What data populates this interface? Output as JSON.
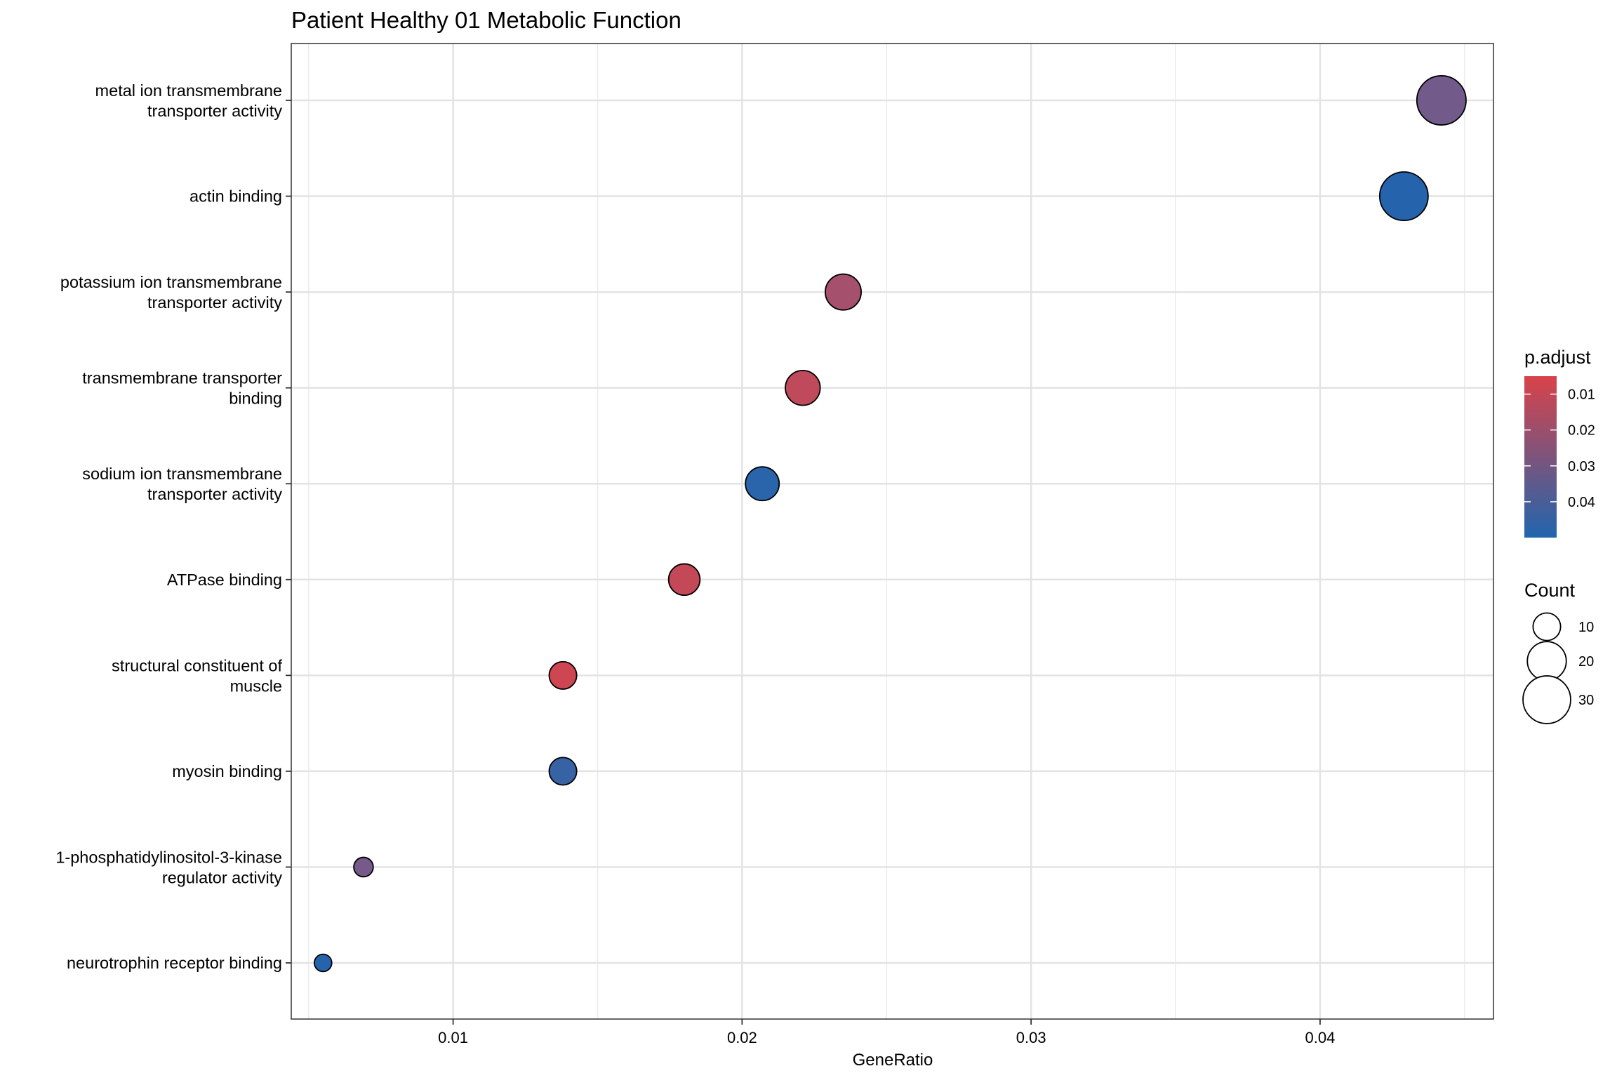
{
  "chart_data": {
    "type": "scatter",
    "title": "Patient Healthy 01 Metabolic Function",
    "xlabel": "GeneRatio",
    "ylabel": "",
    "xlim": [
      0.0044,
      0.046
    ],
    "x_ticks": [
      0.01,
      0.02,
      0.03,
      0.04
    ],
    "x_tick_labels": [
      "0.01",
      "0.02",
      "0.03",
      "0.04"
    ],
    "grid": true,
    "legend_position": "right",
    "categories": [
      [
        "metal ion transmembrane",
        "transporter activity"
      ],
      [
        "actin binding"
      ],
      [
        "potassium ion transmembrane",
        "transporter activity"
      ],
      [
        "transmembrane transporter",
        "binding"
      ],
      [
        "sodium ion transmembrane",
        "transporter activity"
      ],
      [
        "ATPase binding"
      ],
      [
        "structural constituent of",
        "muscle"
      ],
      [
        "myosin binding"
      ],
      [
        "1-phosphatidylinositol-3-kinase",
        "regulator activity"
      ],
      [
        "neurotrophin receptor binding"
      ]
    ],
    "points": [
      {
        "x": 0.0442,
        "count": 32,
        "p_adjust": 0.032
      },
      {
        "x": 0.0429,
        "count": 31,
        "p_adjust": 0.049
      },
      {
        "x": 0.0235,
        "count": 17,
        "p_adjust": 0.019
      },
      {
        "x": 0.0221,
        "count": 16,
        "p_adjust": 0.012
      },
      {
        "x": 0.0207,
        "count": 15,
        "p_adjust": 0.048
      },
      {
        "x": 0.018,
        "count": 13,
        "p_adjust": 0.011
      },
      {
        "x": 0.0138,
        "count": 10,
        "p_adjust": 0.008
      },
      {
        "x": 0.0138,
        "count": 10,
        "p_adjust": 0.045
      },
      {
        "x": 0.0069,
        "count": 5,
        "p_adjust": 0.031
      },
      {
        "x": 0.0055,
        "count": 4,
        "p_adjust": 0.049
      }
    ],
    "color_legend": {
      "title": "p.adjust",
      "range": [
        0.005,
        0.05
      ],
      "ticks": [
        0.01,
        0.02,
        0.03,
        0.04
      ],
      "tick_labels": [
        "0.01",
        "0.02",
        "0.03",
        "0.04"
      ],
      "low_color": "#D9434A",
      "high_color": "#2165AE"
    },
    "size_legend": {
      "title": "Count",
      "values": [
        10,
        20,
        30
      ],
      "labels": [
        "10",
        "20",
        "30"
      ]
    }
  }
}
